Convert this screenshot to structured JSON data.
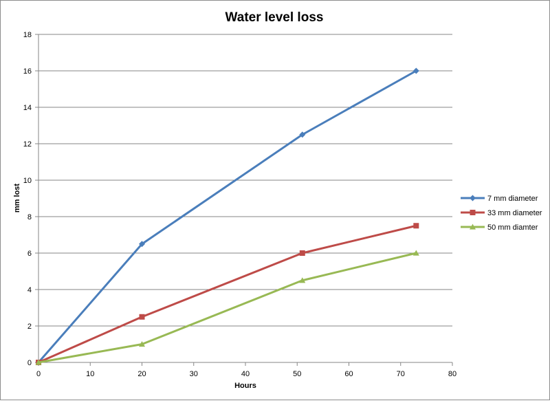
{
  "chart_data": {
    "type": "line",
    "title": "Water level loss",
    "xlabel": "Hours",
    "ylabel": "mm lost",
    "xlim": [
      0,
      80
    ],
    "ylim": [
      0,
      18
    ],
    "x_ticks": [
      0,
      10,
      20,
      30,
      40,
      50,
      60,
      70,
      80
    ],
    "y_ticks": [
      0,
      2,
      4,
      6,
      8,
      10,
      12,
      14,
      16,
      18
    ],
    "grid": "horizontal",
    "legend_position": "right",
    "series": [
      {
        "name": "7 mm diameter",
        "color": "#4A7EBB",
        "marker": "diamond",
        "x": [
          0,
          20,
          51,
          73
        ],
        "y": [
          0,
          6.5,
          12.5,
          16
        ]
      },
      {
        "name": "33 mm diameter",
        "color": "#BE4B48",
        "marker": "square",
        "x": [
          0,
          20,
          51,
          73
        ],
        "y": [
          0,
          2.5,
          6,
          7.5
        ]
      },
      {
        "name": "50 mm diamter",
        "color": "#98B954",
        "marker": "triangle",
        "x": [
          0,
          20,
          51,
          73
        ],
        "y": [
          0,
          1,
          4.5,
          6
        ]
      }
    ]
  }
}
